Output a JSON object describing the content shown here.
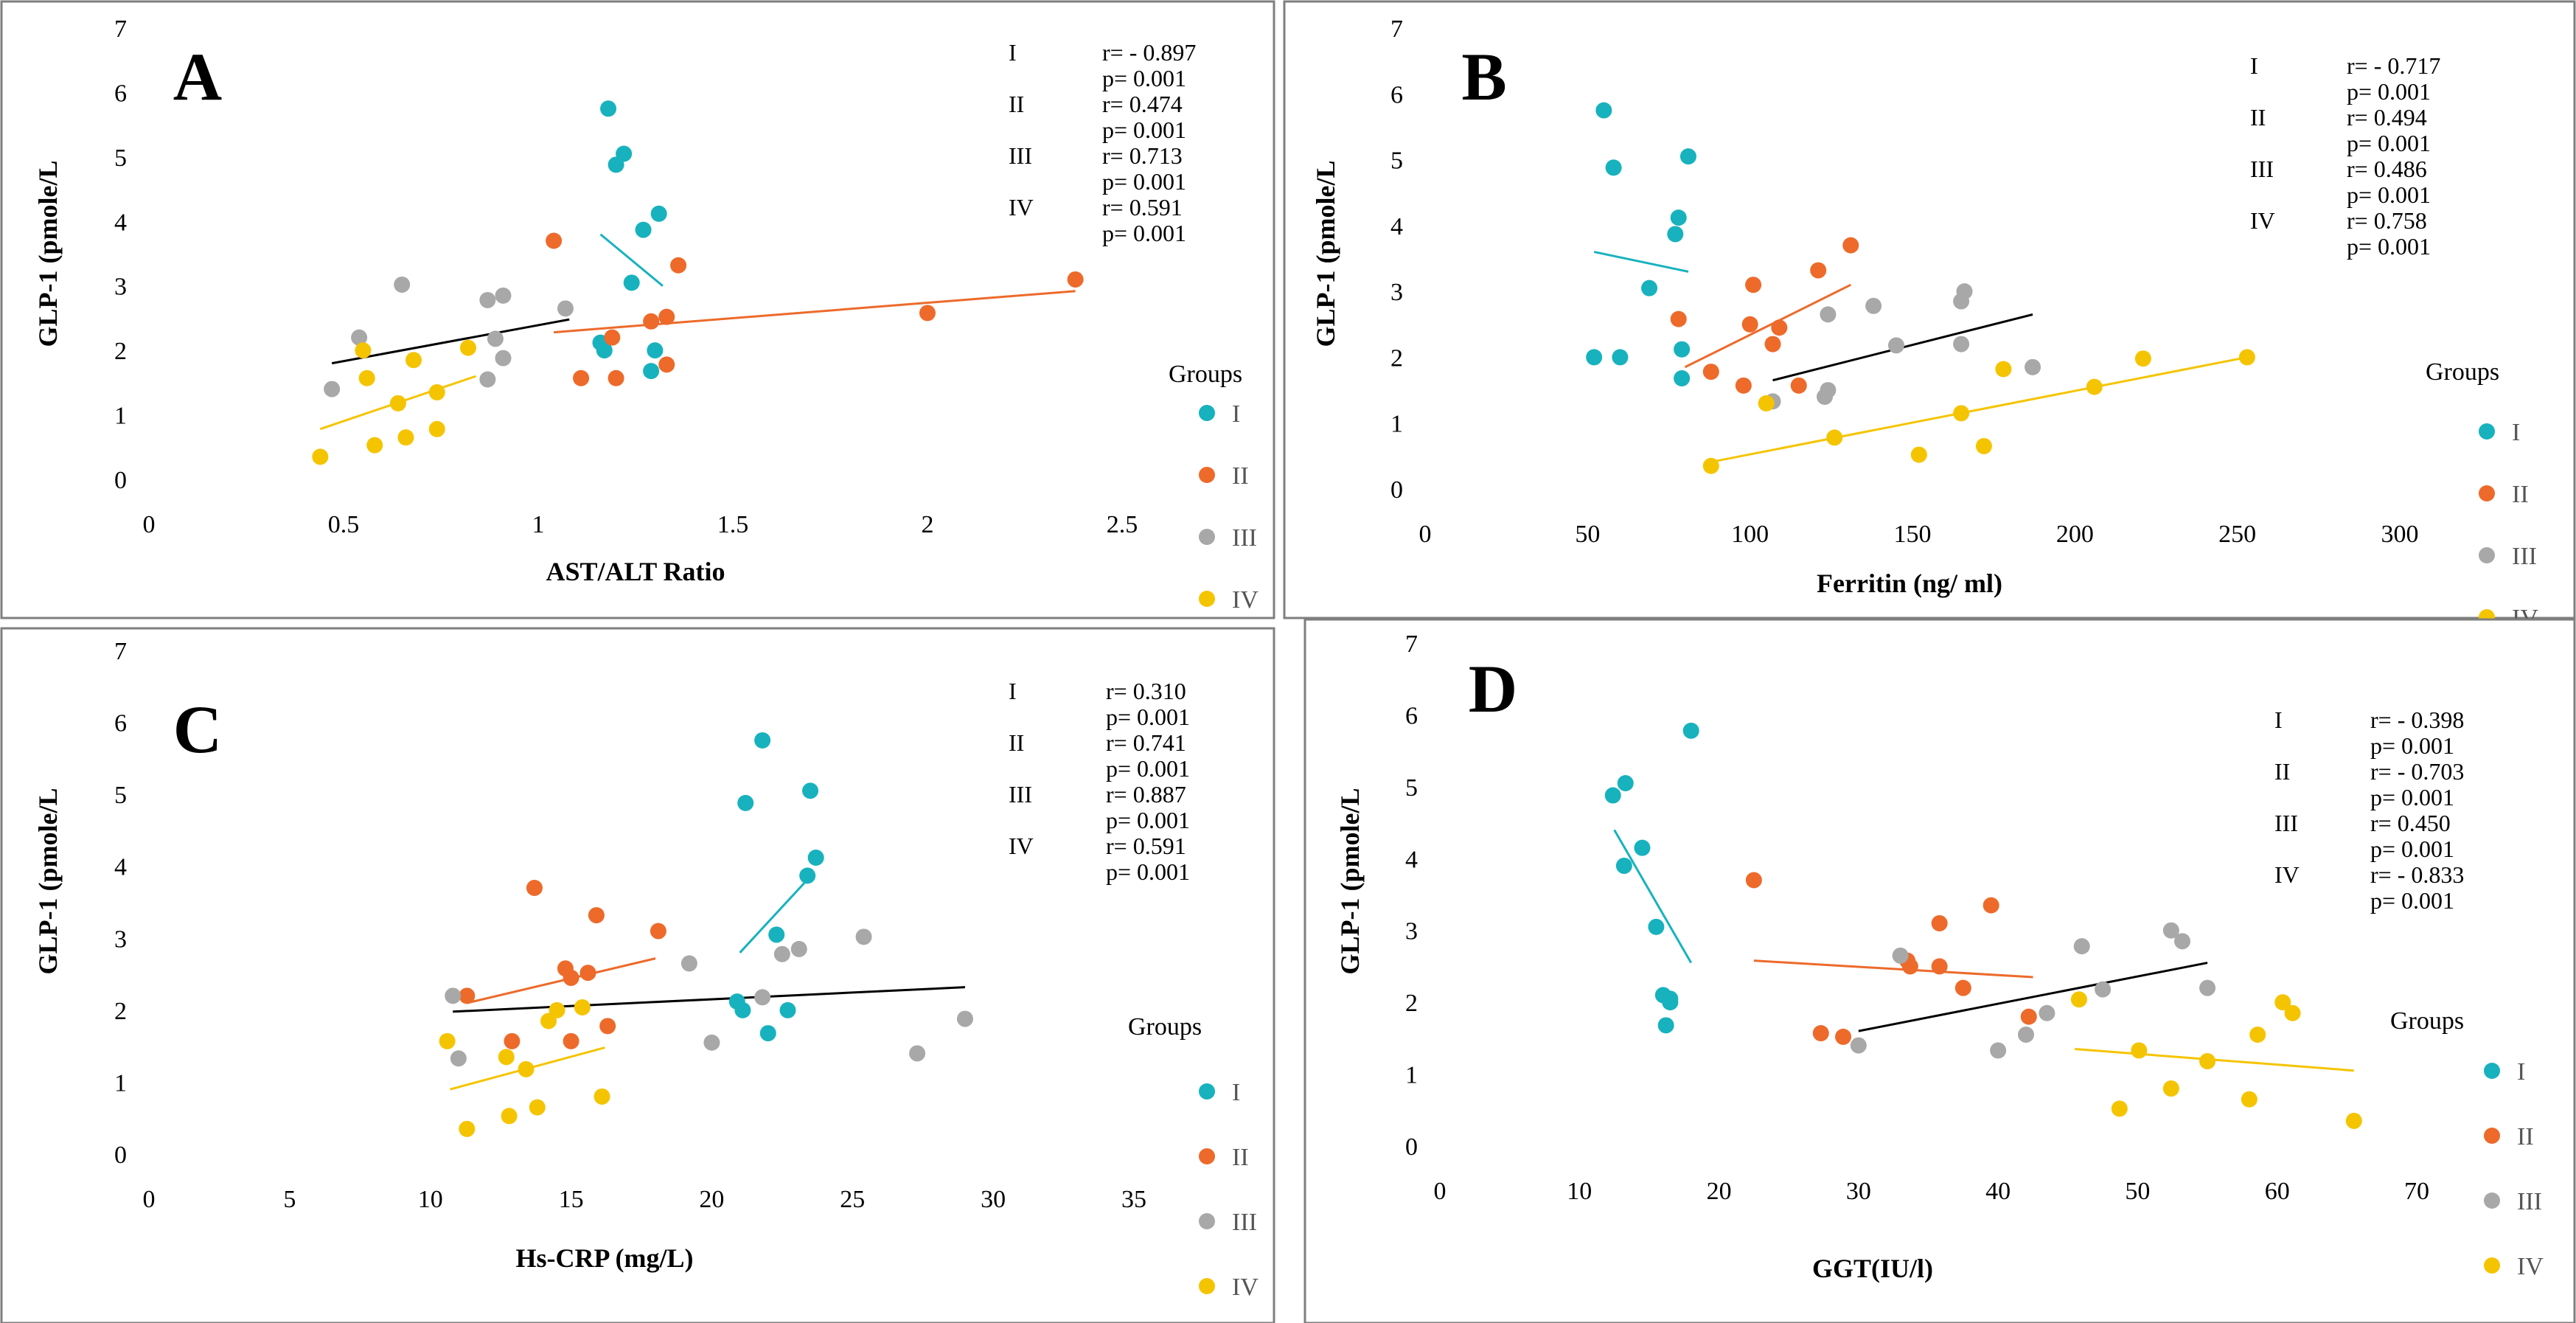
{
  "figure": {
    "group_colors": {
      "I": "#17B2BE",
      "II": "#ED6A2B",
      "III": "#A8A8A8",
      "IV": "#F5C400"
    },
    "trend_colors": {
      "I": "#17B2BE",
      "II": "#ED6A2B",
      "III": "#000000",
      "IV": "#F5C400"
    }
  },
  "chart_data": [
    {
      "panel": "A",
      "type": "scatter",
      "xlabel": "AST/ALT Ratio",
      "ylabel": "GLP-1 (pmole/L",
      "xlim": [
        0,
        2.5
      ],
      "ylim": [
        0,
        7
      ],
      "xticks": [
        "0",
        "0.5",
        "1",
        "1.5",
        "2",
        "2.5"
      ],
      "yticks": [
        "0",
        "1",
        "2",
        "3",
        "4",
        "5",
        "6",
        "7"
      ],
      "legend_title": "Groups",
      "legend_position": "right",
      "grid": false,
      "stats": [
        {
          "group": "I",
          "r": "r= - 0.897",
          "p": "p= 0.001"
        },
        {
          "group": "II",
          "r": "r= 0.474",
          "p": "p= 0.001"
        },
        {
          "group": "III",
          "r": "r= 0.713",
          "p": "p= 0.001"
        },
        {
          "group": "IV",
          "r": "r= 0.591",
          "p": "p= 0.001"
        }
      ],
      "series": [
        {
          "name": "I",
          "points": [
            [
              1.18,
              5.75
            ],
            [
              1.22,
              5.05
            ],
            [
              1.2,
              4.88
            ],
            [
              1.31,
              4.12
            ],
            [
              1.27,
              3.87
            ],
            [
              1.24,
              3.05
            ],
            [
              1.16,
              2.12
            ],
            [
              1.17,
              2.0
            ],
            [
              1.3,
              2.0
            ],
            [
              1.29,
              1.68
            ]
          ],
          "trend": [
            [
              1.16,
              3.8
            ],
            [
              1.32,
              3.0
            ]
          ]
        },
        {
          "name": "II",
          "points": [
            [
              1.04,
              3.7
            ],
            [
              1.36,
              3.32
            ],
            [
              1.33,
              2.52
            ],
            [
              1.29,
              2.45
            ],
            [
              1.19,
              2.2
            ],
            [
              1.33,
              1.78
            ],
            [
              1.11,
              1.57
            ],
            [
              1.2,
              1.57
            ],
            [
              2.0,
              2.58
            ],
            [
              2.38,
              3.1
            ]
          ],
          "trend": [
            [
              1.04,
              2.28
            ],
            [
              2.38,
              2.92
            ]
          ]
        },
        {
          "name": "III",
          "points": [
            [
              0.65,
              3.02
            ],
            [
              0.91,
              2.85
            ],
            [
              0.87,
              2.78
            ],
            [
              1.07,
              2.65
            ],
            [
              0.54,
              2.2
            ],
            [
              0.89,
              2.18
            ],
            [
              0.91,
              1.88
            ],
            [
              0.87,
              1.55
            ],
            [
              0.47,
              1.4
            ]
          ],
          "trend": [
            [
              0.47,
              1.8
            ],
            [
              1.08,
              2.48
            ]
          ]
        },
        {
          "name": "IV",
          "points": [
            [
              0.82,
              2.04
            ],
            [
              0.55,
              2.0
            ],
            [
              0.68,
              1.85
            ],
            [
              0.56,
              1.57
            ],
            [
              0.74,
              1.35
            ],
            [
              0.64,
              1.18
            ],
            [
              0.74,
              0.78
            ],
            [
              0.66,
              0.65
            ],
            [
              0.58,
              0.53
            ],
            [
              0.44,
              0.35
            ]
          ],
          "trend": [
            [
              0.44,
              0.78
            ],
            [
              0.84,
              1.6
            ]
          ]
        }
      ]
    },
    {
      "panel": "B",
      "type": "scatter",
      "xlabel": "Ferritin (ng/ ml)",
      "ylabel": "GLP-1 (pmole/L",
      "xlim": [
        0,
        300
      ],
      "ylim": [
        0,
        7
      ],
      "xticks": [
        "0",
        "50",
        "100",
        "150",
        "200",
        "250",
        "300"
      ],
      "yticks": [
        "0",
        "1",
        "2",
        "3",
        "4",
        "5",
        "6",
        "7"
      ],
      "legend_title": "Groups",
      "legend_position": "right",
      "grid": false,
      "stats": [
        {
          "group": "I",
          "r": "r= - 0.717",
          "p": "p= 0.001"
        },
        {
          "group": "II",
          "r": "r= 0.494",
          "p": "p= 0.001"
        },
        {
          "group": "III",
          "r": "r= 0.486",
          "p": "p= 0.001"
        },
        {
          "group": "IV",
          "r": "r= 0.758",
          "p": "p= 0.001"
        }
      ],
      "series": [
        {
          "name": "I",
          "points": [
            [
              55,
              5.75
            ],
            [
              58,
              4.88
            ],
            [
              81,
              5.05
            ],
            [
              78,
              4.12
            ],
            [
              77,
              3.87
            ],
            [
              69,
              3.05
            ],
            [
              79,
              2.12
            ],
            [
              52,
              2.0
            ],
            [
              60,
              2.0
            ],
            [
              79,
              1.68
            ]
          ],
          "trend": [
            [
              52,
              3.6
            ],
            [
              81,
              3.3
            ]
          ]
        },
        {
          "name": "II",
          "points": [
            [
              131,
              3.7
            ],
            [
              121,
              3.32
            ],
            [
              101,
              3.1
            ],
            [
              78,
              2.58
            ],
            [
              100,
              2.5
            ],
            [
              109,
              2.45
            ],
            [
              107,
              2.2
            ],
            [
              88,
              1.78
            ],
            [
              98,
              1.57
            ],
            [
              115,
              1.57
            ]
          ],
          "trend": [
            [
              80,
              1.85
            ],
            [
              131,
              3.1
            ]
          ]
        },
        {
          "name": "III",
          "points": [
            [
              166,
              3.0
            ],
            [
              138,
              2.78
            ],
            [
              165,
              2.85
            ],
            [
              124,
              2.65
            ],
            [
              145,
              2.18
            ],
            [
              165,
              2.2
            ],
            [
              187,
              1.85
            ],
            [
              124,
              1.5
            ],
            [
              123,
              1.4
            ],
            [
              107,
              1.33
            ]
          ],
          "trend": [
            [
              107,
              1.65
            ],
            [
              187,
              2.65
            ]
          ]
        },
        {
          "name": "IV",
          "points": [
            [
              253,
              2.0
            ],
            [
              221,
              1.98
            ],
            [
              178,
              1.82
            ],
            [
              206,
              1.55
            ],
            [
              105,
              1.3
            ],
            [
              165,
              1.15
            ],
            [
              126,
              0.78
            ],
            [
              172,
              0.65
            ],
            [
              152,
              0.52
            ],
            [
              88,
              0.35
            ]
          ],
          "trend": [
            [
              87,
              0.4
            ],
            [
              253,
              2.0
            ]
          ]
        }
      ]
    },
    {
      "panel": "C",
      "type": "scatter",
      "xlabel": "Hs-CRP (mg/L)",
      "ylabel": "GLP-1 (pmole/L",
      "xlim": [
        0,
        35
      ],
      "ylim": [
        0,
        7
      ],
      "xticks": [
        "0",
        "5",
        "10",
        "15",
        "20",
        "25",
        "30",
        "35"
      ],
      "yticks": [
        "0",
        "1",
        "2",
        "3",
        "4",
        "5",
        "6",
        "7"
      ],
      "legend_title": "Groups",
      "legend_position": "right",
      "grid": false,
      "stats": [
        {
          "group": "I",
          "r": "r= 0.310",
          "p": "p= 0.001"
        },
        {
          "group": "II",
          "r": "r= 0.741",
          "p": "p= 0.001"
        },
        {
          "group": "III",
          "r": "r= 0.887",
          "p": "p= 0.001"
        },
        {
          "group": "IV",
          "r": "r= 0.591",
          "p": "p= 0.001"
        }
      ],
      "series": [
        {
          "name": "I",
          "points": [
            [
              21.8,
              5.75
            ],
            [
              21.2,
              4.88
            ],
            [
              23.5,
              5.05
            ],
            [
              23.7,
              4.12
            ],
            [
              23.4,
              3.87
            ],
            [
              22.3,
              3.05
            ],
            [
              20.9,
              2.12
            ],
            [
              21.1,
              2.0
            ],
            [
              22.7,
              2.0
            ],
            [
              22.0,
              1.68
            ]
          ],
          "trend": [
            [
              21.0,
              2.8
            ],
            [
              23.6,
              3.9
            ]
          ]
        },
        {
          "name": "II",
          "points": [
            [
              13.7,
              3.7
            ],
            [
              15.9,
              3.32
            ],
            [
              18.1,
              3.1
            ],
            [
              14.8,
              2.58
            ],
            [
              15.6,
              2.52
            ],
            [
              15.0,
              2.45
            ],
            [
              11.3,
              2.2
            ],
            [
              16.3,
              1.78
            ],
            [
              12.9,
              1.57
            ],
            [
              15.0,
              1.57
            ]
          ],
          "trend": [
            [
              11.3,
              2.1
            ],
            [
              18.0,
              2.72
            ]
          ]
        },
        {
          "name": "III",
          "points": [
            [
              25.4,
              3.02
            ],
            [
              23.1,
              2.85
            ],
            [
              22.5,
              2.78
            ],
            [
              19.2,
              2.65
            ],
            [
              10.8,
              2.2
            ],
            [
              21.8,
              2.18
            ],
            [
              29.0,
              1.88
            ],
            [
              20.0,
              1.55
            ],
            [
              27.3,
              1.4
            ],
            [
              11.0,
              1.33
            ]
          ],
          "trend": [
            [
              10.8,
              1.98
            ],
            [
              29.0,
              2.32
            ]
          ]
        },
        {
          "name": "IV",
          "points": [
            [
              14.5,
              2.0
            ],
            [
              15.4,
              2.04
            ],
            [
              14.2,
              1.85
            ],
            [
              10.6,
              1.57
            ],
            [
              12.7,
              1.35
            ],
            [
              13.4,
              1.18
            ],
            [
              16.1,
              0.8
            ],
            [
              13.8,
              0.65
            ],
            [
              12.8,
              0.53
            ],
            [
              11.3,
              0.35
            ]
          ],
          "trend": [
            [
              10.7,
              0.9
            ],
            [
              16.2,
              1.48
            ]
          ]
        }
      ]
    },
    {
      "panel": "D",
      "type": "scatter",
      "xlabel": "GGT(IU/l)",
      "ylabel": "GLP-1 (pmole/L",
      "xlim": [
        0,
        70
      ],
      "ylim": [
        0,
        7
      ],
      "xticks": [
        "0",
        "10",
        "20",
        "30",
        "40",
        "50",
        "60",
        "70"
      ],
      "yticks": [
        "0",
        "1",
        "2",
        "3",
        "4",
        "5",
        "6",
        "7"
      ],
      "legend_title": "Groups",
      "legend_position": "right",
      "grid": false,
      "stats": [
        {
          "group": "I",
          "r": "r= - 0.398",
          "p": "p= 0.001"
        },
        {
          "group": "II",
          "r": "r= - 0.703",
          "p": "p= 0.001"
        },
        {
          "group": "III",
          "r": "r= 0.450",
          "p": "p= 0.001"
        },
        {
          "group": "IV",
          "r": "r= - 0.833",
          "p": "p= 0.001"
        }
      ],
      "series": [
        {
          "name": "I",
          "points": [
            [
              18.0,
              5.78
            ],
            [
              12.4,
              4.88
            ],
            [
              13.3,
              5.05
            ],
            [
              14.5,
              4.15
            ],
            [
              13.2,
              3.9
            ],
            [
              15.5,
              3.05
            ],
            [
              16.0,
              2.1
            ],
            [
              16.5,
              2.0
            ],
            [
              16.5,
              2.05
            ],
            [
              16.2,
              1.68
            ]
          ],
          "trend": [
            [
              12.5,
              4.4
            ],
            [
              18.0,
              2.55
            ]
          ]
        },
        {
          "name": "II",
          "points": [
            [
              22.5,
              3.7
            ],
            [
              39.5,
              3.35
            ],
            [
              35.8,
              3.1
            ],
            [
              33.7,
              2.5
            ],
            [
              35.8,
              2.5
            ],
            [
              33.5,
              2.58
            ],
            [
              37.5,
              2.2
            ],
            [
              42.2,
              1.8
            ],
            [
              27.3,
              1.57
            ],
            [
              28.9,
              1.52
            ]
          ],
          "trend": [
            [
              22.5,
              2.58
            ],
            [
              42.5,
              2.35
            ]
          ]
        },
        {
          "name": "III",
          "points": [
            [
              52.4,
              3.0
            ],
            [
              53.2,
              2.85
            ],
            [
              46.0,
              2.78
            ],
            [
              33.0,
              2.65
            ],
            [
              55.0,
              2.2
            ],
            [
              47.5,
              2.18
            ],
            [
              43.5,
              1.85
            ],
            [
              42.0,
              1.55
            ],
            [
              30.0,
              1.4
            ],
            [
              40.0,
              1.33
            ]
          ],
          "trend": [
            [
              30.0,
              1.6
            ],
            [
              55.0,
              2.55
            ]
          ]
        },
        {
          "name": "IV",
          "points": [
            [
              60.4,
              2.0
            ],
            [
              61.1,
              1.85
            ],
            [
              45.8,
              2.04
            ],
            [
              58.6,
              1.55
            ],
            [
              50.1,
              1.33
            ],
            [
              55.0,
              1.18
            ],
            [
              52.4,
              0.8
            ],
            [
              58.0,
              0.65
            ],
            [
              48.7,
              0.52
            ],
            [
              65.5,
              0.35
            ]
          ],
          "trend": [
            [
              45.5,
              1.35
            ],
            [
              65.5,
              1.05
            ]
          ]
        }
      ]
    }
  ]
}
